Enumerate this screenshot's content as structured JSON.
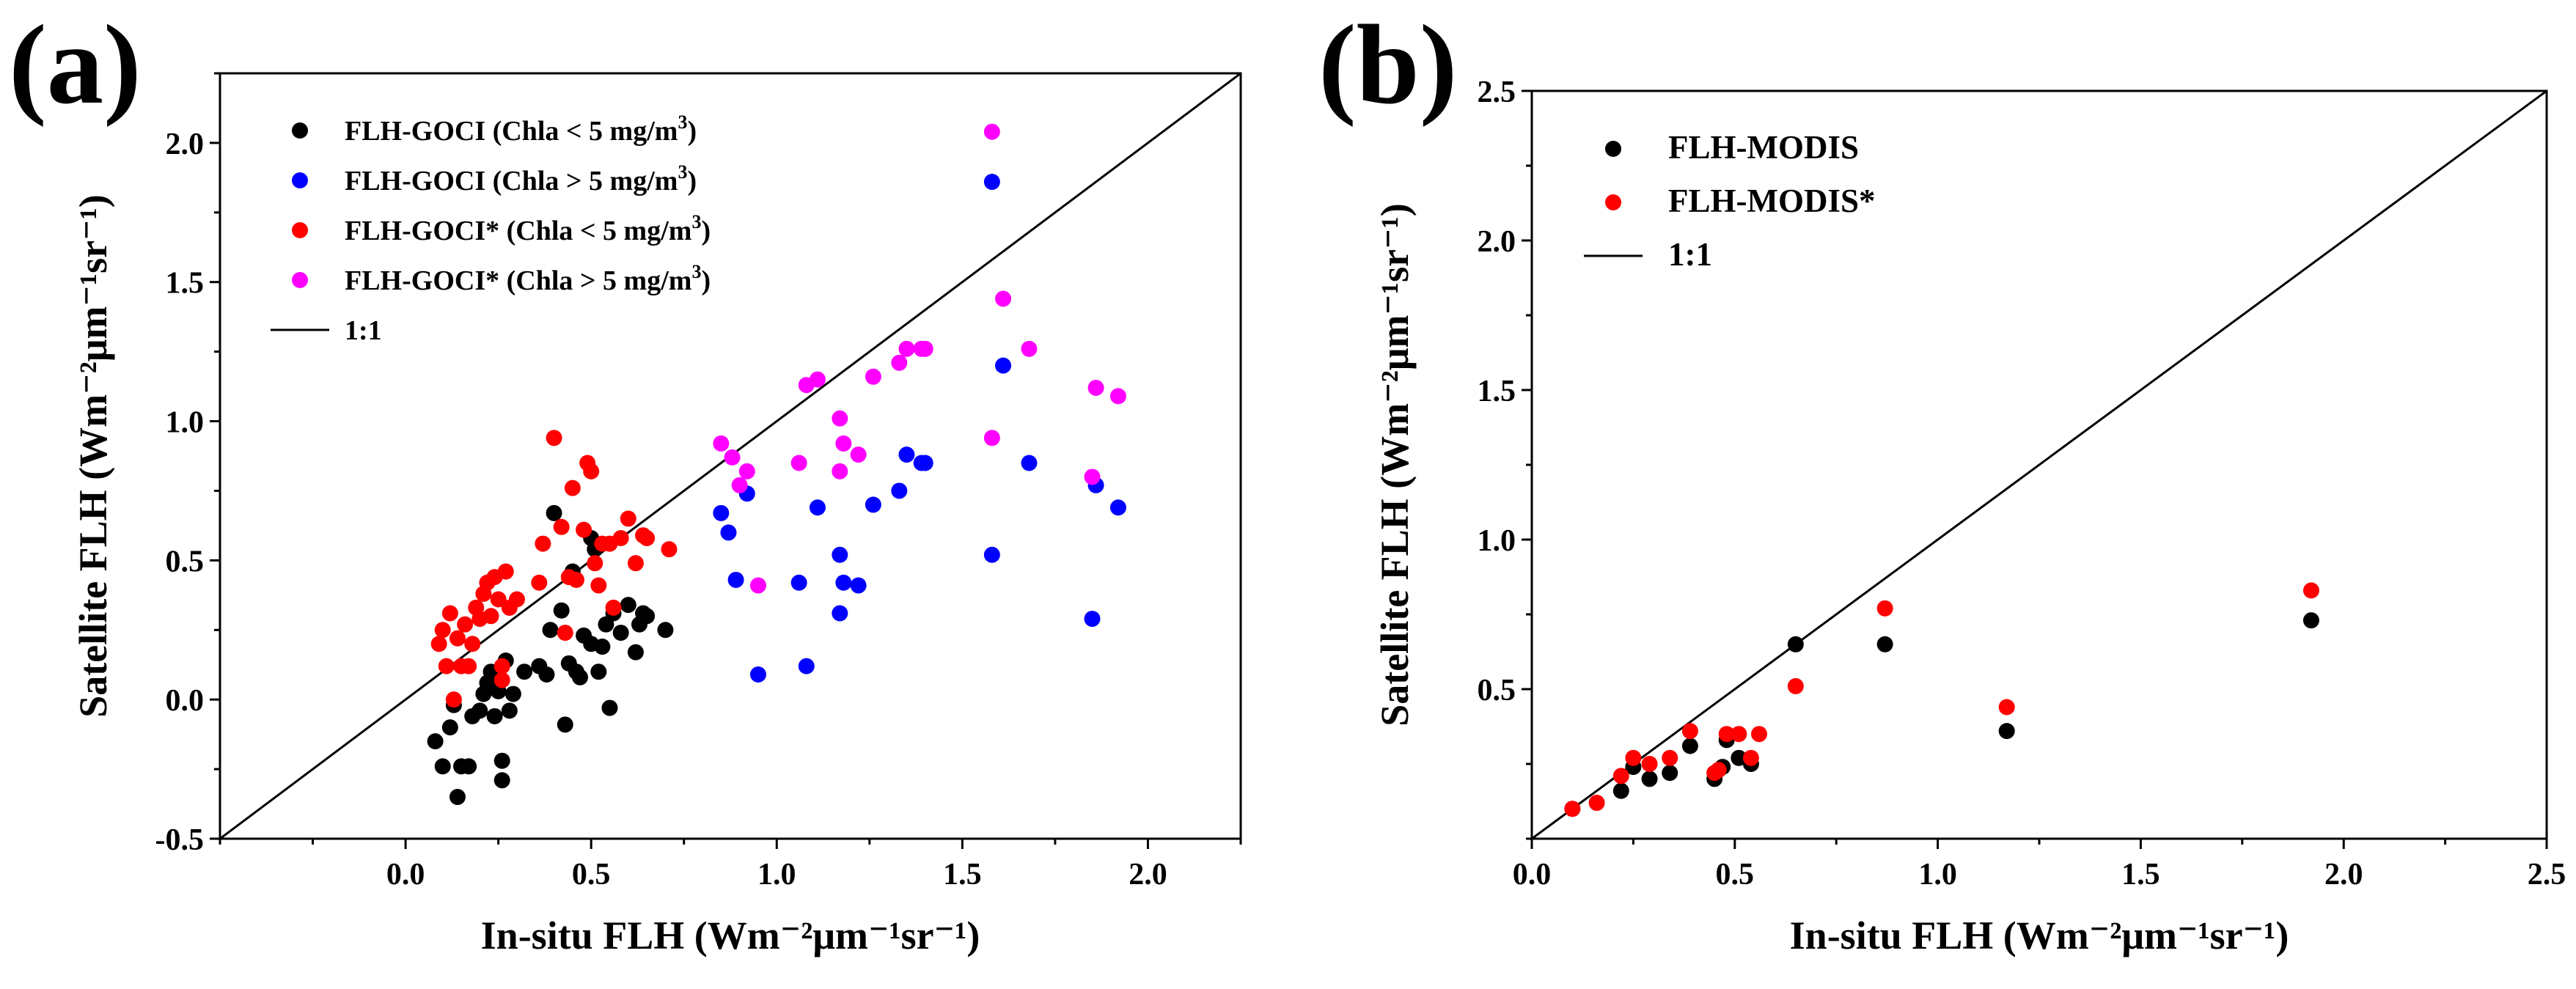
{
  "chart_data": [
    {
      "panel_label": "(a)",
      "type": "scatter",
      "xlabel": "In-situ FLH (Wm⁻²μm⁻¹sr⁻¹)",
      "ylabel": "Satellite FLH (Wm⁻²μm⁻¹sr⁻¹)",
      "xlim": [
        -0.5,
        2.25
      ],
      "ylim": [
        -0.5,
        2.25
      ],
      "xticks": [
        0.0,
        0.5,
        1.0,
        1.5,
        2.0
      ],
      "xtick_labels": [
        "0.0",
        "0.5",
        "1.0",
        "1.5",
        "2.0"
      ],
      "yticks": [
        -0.5,
        0.0,
        0.5,
        1.0,
        1.5,
        2.0
      ],
      "ytick_labels": [
        "-0.5",
        "0.0",
        "0.5",
        "1.0",
        "1.5",
        "2.0"
      ],
      "legend_position": "top-left",
      "reference_line": {
        "label": "1:1",
        "slope": 1,
        "intercept": 0
      },
      "series": [
        {
          "name": "FLH-GOCI (Chla < 5 mg/m³)",
          "label_main": "FLH-GOCI (Chla < 5 mg/m",
          "label_sup": "3",
          "label_end": ")",
          "color": "#000000",
          "points": [
            [
              0.08,
              -0.15
            ],
            [
              0.1,
              -0.24
            ],
            [
              0.12,
              -0.1
            ],
            [
              0.13,
              -0.02
            ],
            [
              0.14,
              -0.35
            ],
            [
              0.15,
              -0.24
            ],
            [
              0.17,
              -0.24
            ],
            [
              0.18,
              -0.06
            ],
            [
              0.2,
              -0.04
            ],
            [
              0.21,
              0.02
            ],
            [
              0.22,
              0.06
            ],
            [
              0.23,
              0.1
            ],
            [
              0.24,
              -0.06
            ],
            [
              0.25,
              0.03
            ],
            [
              0.26,
              -0.22
            ],
            [
              0.26,
              -0.29
            ],
            [
              0.27,
              0.14
            ],
            [
              0.28,
              -0.04
            ],
            [
              0.29,
              0.02
            ],
            [
              0.32,
              0.1
            ],
            [
              0.36,
              0.12
            ],
            [
              0.38,
              0.09
            ],
            [
              0.39,
              0.25
            ],
            [
              0.4,
              0.67
            ],
            [
              0.42,
              0.32
            ],
            [
              0.43,
              -0.09
            ],
            [
              0.44,
              0.13
            ],
            [
              0.45,
              0.46
            ],
            [
              0.46,
              0.1
            ],
            [
              0.47,
              0.08
            ],
            [
              0.48,
              0.23
            ],
            [
              0.5,
              0.58
            ],
            [
              0.5,
              0.2
            ],
            [
              0.51,
              0.54
            ],
            [
              0.52,
              0.1
            ],
            [
              0.53,
              0.19
            ],
            [
              0.54,
              0.27
            ],
            [
              0.55,
              -0.03
            ],
            [
              0.56,
              0.31
            ],
            [
              0.58,
              0.24
            ],
            [
              0.6,
              0.34
            ],
            [
              0.62,
              0.17
            ],
            [
              0.63,
              0.27
            ],
            [
              0.64,
              0.31
            ],
            [
              0.65,
              0.3
            ],
            [
              0.7,
              0.25
            ]
          ]
        },
        {
          "name": "FLH-GOCI (Chla > 5 mg/m³)",
          "label_main": "FLH-GOCI (Chla > 5 mg/m",
          "label_sup": "3",
          "label_end": ")",
          "color": "#0000ff",
          "points": [
            [
              0.85,
              0.67
            ],
            [
              0.87,
              0.6
            ],
            [
              0.89,
              0.43
            ],
            [
              0.92,
              0.74
            ],
            [
              0.95,
              0.09
            ],
            [
              1.06,
              0.42
            ],
            [
              1.08,
              0.12
            ],
            [
              1.11,
              0.69
            ],
            [
              1.17,
              0.52
            ],
            [
              1.17,
              0.31
            ],
            [
              1.18,
              0.42
            ],
            [
              1.22,
              0.41
            ],
            [
              1.26,
              0.7
            ],
            [
              1.33,
              0.75
            ],
            [
              1.35,
              0.88
            ],
            [
              1.39,
              0.85
            ],
            [
              1.4,
              0.85
            ],
            [
              1.58,
              1.86
            ],
            [
              1.58,
              0.52
            ],
            [
              1.61,
              1.2
            ],
            [
              1.68,
              0.85
            ],
            [
              1.85,
              0.29
            ],
            [
              1.86,
              0.77
            ],
            [
              1.92,
              0.69
            ]
          ]
        },
        {
          "name": "FLH-GOCI* (Chla < 5 mg/m³)",
          "label_main": "FLH-GOCI* (Chla < 5 mg/m",
          "label_sup": "3",
          "label_end": ")",
          "color": "#ff0000",
          "points": [
            [
              0.09,
              0.2
            ],
            [
              0.1,
              0.25
            ],
            [
              0.11,
              0.12
            ],
            [
              0.12,
              0.31
            ],
            [
              0.13,
              0.0
            ],
            [
              0.14,
              0.22
            ],
            [
              0.15,
              0.12
            ],
            [
              0.16,
              0.27
            ],
            [
              0.17,
              0.12
            ],
            [
              0.18,
              0.2
            ],
            [
              0.19,
              0.33
            ],
            [
              0.2,
              0.29
            ],
            [
              0.21,
              0.38
            ],
            [
              0.22,
              0.42
            ],
            [
              0.23,
              0.3
            ],
            [
              0.24,
              0.44
            ],
            [
              0.25,
              0.36
            ],
            [
              0.26,
              0.07
            ],
            [
              0.26,
              0.12
            ],
            [
              0.27,
              0.46
            ],
            [
              0.28,
              0.33
            ],
            [
              0.3,
              0.36
            ],
            [
              0.36,
              0.42
            ],
            [
              0.37,
              0.56
            ],
            [
              0.4,
              0.94
            ],
            [
              0.42,
              0.62
            ],
            [
              0.43,
              0.24
            ],
            [
              0.44,
              0.44
            ],
            [
              0.45,
              0.76
            ],
            [
              0.46,
              0.43
            ],
            [
              0.48,
              0.61
            ],
            [
              0.49,
              0.85
            ],
            [
              0.5,
              0.82
            ],
            [
              0.51,
              0.49
            ],
            [
              0.52,
              0.41
            ],
            [
              0.53,
              0.56
            ],
            [
              0.55,
              0.56
            ],
            [
              0.56,
              0.33
            ],
            [
              0.58,
              0.58
            ],
            [
              0.6,
              0.65
            ],
            [
              0.62,
              0.49
            ],
            [
              0.64,
              0.59
            ],
            [
              0.65,
              0.58
            ],
            [
              0.71,
              0.54
            ]
          ]
        },
        {
          "name": "FLH-GOCI* (Chla > 5 mg/m³)",
          "label_main": "FLH-GOCI* (Chla > 5 mg/m",
          "label_sup": "3",
          "label_end": ")",
          "color": "#ff00ff",
          "points": [
            [
              0.85,
              0.92
            ],
            [
              0.88,
              0.87
            ],
            [
              0.9,
              0.77
            ],
            [
              0.92,
              0.82
            ],
            [
              0.95,
              0.41
            ],
            [
              1.06,
              0.85
            ],
            [
              1.08,
              1.13
            ],
            [
              1.11,
              1.15
            ],
            [
              1.17,
              1.01
            ],
            [
              1.17,
              0.82
            ],
            [
              1.18,
              0.92
            ],
            [
              1.22,
              0.88
            ],
            [
              1.26,
              1.16
            ],
            [
              1.33,
              1.21
            ],
            [
              1.35,
              1.26
            ],
            [
              1.39,
              1.26
            ],
            [
              1.4,
              1.26
            ],
            [
              1.58,
              2.04
            ],
            [
              1.58,
              0.94
            ],
            [
              1.61,
              1.44
            ],
            [
              1.68,
              1.26
            ],
            [
              1.85,
              0.8
            ],
            [
              1.86,
              1.12
            ],
            [
              1.92,
              1.09
            ]
          ]
        }
      ]
    },
    {
      "panel_label": "(b)",
      "type": "scatter",
      "xlabel": "In-situ FLH (Wm⁻²μm⁻¹sr⁻¹)",
      "ylabel": "Satellite FLH (Wm⁻²μm⁻¹sr⁻¹)",
      "xlim": [
        0.0,
        2.5
      ],
      "ylim": [
        0.0,
        2.5
      ],
      "xticks": [
        0.0,
        0.5,
        1.0,
        1.5,
        2.0,
        2.5
      ],
      "xtick_labels": [
        "0.0",
        "0.5",
        "1.0",
        "1.5",
        "2.0",
        "2.5"
      ],
      "yticks": [
        0.5,
        1.0,
        1.5,
        2.0,
        2.5
      ],
      "ytick_labels": [
        "0.5",
        "1.0",
        "1.5",
        "2.0",
        "2.5"
      ],
      "legend_position": "top-left",
      "reference_line": {
        "label": "1:1",
        "slope": 1,
        "intercept": 0
      },
      "series": [
        {
          "name": "FLH-MODIS",
          "label_main": "FLH-MODIS",
          "label_sup": "",
          "label_end": "",
          "color": "#000000",
          "points": [
            [
              0.1,
              0.1
            ],
            [
              0.22,
              0.16
            ],
            [
              0.25,
              0.24
            ],
            [
              0.29,
              0.2
            ],
            [
              0.34,
              0.22
            ],
            [
              0.39,
              0.31
            ],
            [
              0.45,
              0.2
            ],
            [
              0.47,
              0.24
            ],
            [
              0.48,
              0.33
            ],
            [
              0.51,
              0.27
            ],
            [
              0.54,
              0.25
            ],
            [
              0.65,
              0.65
            ],
            [
              0.87,
              0.65
            ],
            [
              1.17,
              0.36
            ],
            [
              1.92,
              0.73
            ]
          ]
        },
        {
          "name": "FLH-MODIS*",
          "label_main": "FLH-MODIS*",
          "label_sup": "",
          "label_end": "",
          "color": "#ff0000",
          "points": [
            [
              0.1,
              0.1
            ],
            [
              0.16,
              0.12
            ],
            [
              0.22,
              0.21
            ],
            [
              0.25,
              0.27
            ],
            [
              0.29,
              0.25
            ],
            [
              0.34,
              0.27
            ],
            [
              0.39,
              0.36
            ],
            [
              0.45,
              0.22
            ],
            [
              0.46,
              0.23
            ],
            [
              0.48,
              0.35
            ],
            [
              0.51,
              0.35
            ],
            [
              0.54,
              0.27
            ],
            [
              0.56,
              0.35
            ],
            [
              0.65,
              0.51
            ],
            [
              0.87,
              0.77
            ],
            [
              1.17,
              0.44
            ],
            [
              1.92,
              0.83
            ]
          ]
        }
      ]
    }
  ]
}
